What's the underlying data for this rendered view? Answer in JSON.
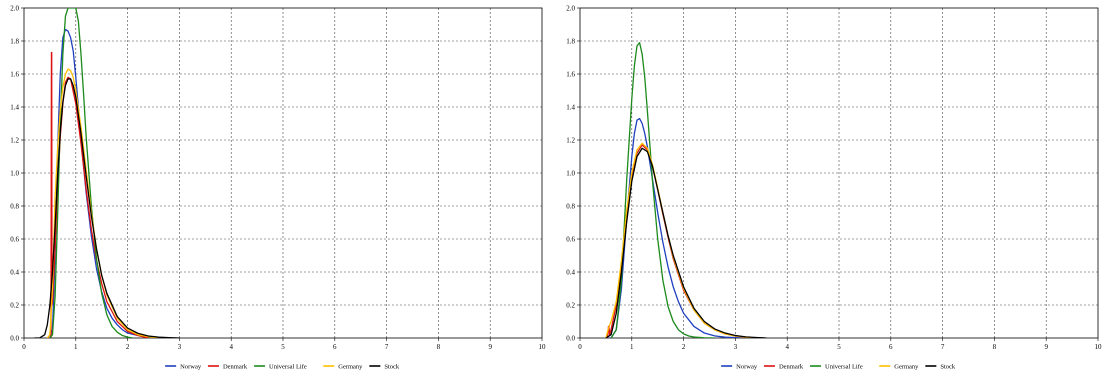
{
  "chart_data": [
    {
      "type": "line",
      "title": "",
      "xlabel": "",
      "ylabel": "",
      "xlim": [
        0,
        10
      ],
      "ylim": [
        0,
        2.0
      ],
      "x_ticks": [
        "0",
        "1",
        "2",
        "3",
        "4",
        "5",
        "6",
        "7",
        "8",
        "9",
        "10"
      ],
      "y_ticks": [
        "0.0",
        "0.2",
        "0.4",
        "0.6",
        "0.8",
        "1.0",
        "1.2",
        "1.4",
        "1.6",
        "1.8",
        "2.0"
      ],
      "grid": true,
      "legend_position": "bottom",
      "series": [
        {
          "name": "Norway",
          "color": "#1f3fbf",
          "x": [
            0.45,
            0.5,
            0.55,
            0.6,
            0.65,
            0.7,
            0.75,
            0.8,
            0.85,
            0.9,
            0.95,
            1.0,
            1.05,
            1.1,
            1.2,
            1.3,
            1.4,
            1.5,
            1.6,
            1.7,
            1.8,
            1.9,
            2.0,
            2.2,
            2.4,
            2.6,
            2.8
          ],
          "y": [
            0.0,
            0.0,
            0.05,
            0.5,
            1.15,
            1.6,
            1.82,
            1.87,
            1.86,
            1.82,
            1.74,
            1.58,
            1.4,
            1.2,
            0.88,
            0.62,
            0.42,
            0.28,
            0.18,
            0.12,
            0.08,
            0.05,
            0.03,
            0.015,
            0.007,
            0.003,
            0.0
          ]
        },
        {
          "name": "Denmark",
          "color": "#dd1111",
          "x": [
            0.45,
            0.5,
            0.52,
            0.53,
            0.535,
            0.54,
            0.55,
            0.6,
            0.65,
            0.7,
            0.75,
            0.8,
            0.85,
            0.9,
            1.0,
            1.1,
            1.2,
            1.3,
            1.4,
            1.5,
            1.6,
            1.8,
            2.0,
            2.2,
            2.4
          ],
          "y": [
            0.0,
            0.0,
            0.0,
            1.73,
            1.73,
            0.2,
            0.22,
            0.55,
            0.92,
            1.22,
            1.42,
            1.55,
            1.58,
            1.57,
            1.42,
            1.18,
            0.9,
            0.66,
            0.47,
            0.33,
            0.22,
            0.1,
            0.04,
            0.015,
            0.0
          ]
        },
        {
          "name": "Universal Life",
          "color": "#1c8a1c",
          "x": [
            0.5,
            0.55,
            0.6,
            0.65,
            0.7,
            0.75,
            0.8,
            0.85,
            0.9,
            0.95,
            1.0,
            1.05,
            1.1,
            1.15,
            1.2,
            1.3,
            1.4,
            1.5,
            1.6,
            1.7,
            1.8,
            1.9,
            2.0,
            2.1
          ],
          "y": [
            0.0,
            0.02,
            0.25,
            0.75,
            1.3,
            1.72,
            1.95,
            2.0,
            2.0,
            2.0,
            2.0,
            1.92,
            1.72,
            1.48,
            1.22,
            0.8,
            0.48,
            0.27,
            0.14,
            0.07,
            0.035,
            0.015,
            0.005,
            0.0
          ]
        },
        {
          "name": "Germany",
          "color": "#ffc000",
          "x": [
            0.45,
            0.5,
            0.55,
            0.6,
            0.65,
            0.7,
            0.75,
            0.8,
            0.85,
            0.9,
            0.95,
            1.0,
            1.1,
            1.2,
            1.3,
            1.4,
            1.5,
            1.6,
            1.8,
            2.0,
            2.2,
            2.4,
            2.6
          ],
          "y": [
            0.0,
            0.02,
            0.3,
            0.85,
            1.15,
            1.38,
            1.52,
            1.6,
            1.63,
            1.62,
            1.58,
            1.5,
            1.28,
            1.02,
            0.76,
            0.54,
            0.38,
            0.26,
            0.12,
            0.05,
            0.02,
            0.008,
            0.0
          ]
        },
        {
          "name": "Stock",
          "color": "#000000",
          "x": [
            0.2,
            0.3,
            0.4,
            0.45,
            0.5,
            0.55,
            0.6,
            0.65,
            0.7,
            0.75,
            0.8,
            0.85,
            0.9,
            0.95,
            1.0,
            1.1,
            1.2,
            1.3,
            1.4,
            1.5,
            1.6,
            1.8,
            2.0,
            2.2,
            2.4,
            2.6,
            2.8,
            3.0
          ],
          "y": [
            0.0,
            0.0,
            0.02,
            0.08,
            0.2,
            0.4,
            0.68,
            0.98,
            1.25,
            1.43,
            1.53,
            1.57,
            1.57,
            1.53,
            1.46,
            1.24,
            0.98,
            0.74,
            0.54,
            0.38,
            0.27,
            0.13,
            0.06,
            0.028,
            0.012,
            0.005,
            0.002,
            0.0
          ]
        }
      ]
    },
    {
      "type": "line",
      "title": "",
      "xlabel": "",
      "ylabel": "",
      "xlim": [
        0,
        10
      ],
      "ylim": [
        0,
        2.0
      ],
      "x_ticks": [
        "0",
        "1",
        "2",
        "3",
        "4",
        "5",
        "6",
        "7",
        "8",
        "9",
        "10"
      ],
      "y_ticks": [
        "0.0",
        "0.2",
        "0.4",
        "0.6",
        "0.8",
        "1.0",
        "1.2",
        "1.4",
        "1.6",
        "1.8",
        "2.0"
      ],
      "grid": true,
      "legend_position": "bottom",
      "series": [
        {
          "name": "Norway",
          "color": "#1f3fbf",
          "x": [
            0.5,
            0.6,
            0.7,
            0.8,
            0.9,
            1.0,
            1.05,
            1.1,
            1.15,
            1.2,
            1.25,
            1.3,
            1.4,
            1.5,
            1.6,
            1.7,
            1.8,
            1.9,
            2.0,
            2.2,
            2.4,
            2.6,
            2.8,
            3.0,
            3.2
          ],
          "y": [
            0.0,
            0.0,
            0.05,
            0.3,
            0.72,
            1.1,
            1.24,
            1.32,
            1.33,
            1.3,
            1.24,
            1.16,
            0.96,
            0.76,
            0.58,
            0.43,
            0.31,
            0.22,
            0.15,
            0.07,
            0.03,
            0.013,
            0.005,
            0.002,
            0.0
          ]
        },
        {
          "name": "Denmark",
          "color": "#dd1111",
          "x": [
            0.5,
            0.53,
            0.55,
            0.56,
            0.57,
            0.6,
            0.7,
            0.8,
            0.9,
            1.0,
            1.1,
            1.2,
            1.3,
            1.4,
            1.5,
            1.6,
            1.7,
            1.8,
            2.0,
            2.2,
            2.4,
            2.6,
            2.8,
            3.0,
            3.2,
            3.4
          ],
          "y": [
            0.0,
            0.0,
            0.07,
            0.07,
            0.02,
            0.05,
            0.2,
            0.45,
            0.75,
            0.98,
            1.12,
            1.17,
            1.14,
            1.04,
            0.9,
            0.75,
            0.61,
            0.48,
            0.29,
            0.17,
            0.09,
            0.05,
            0.025,
            0.012,
            0.005,
            0.0
          ]
        },
        {
          "name": "Universal Life",
          "color": "#1c8a1c",
          "x": [
            0.6,
            0.7,
            0.8,
            0.9,
            1.0,
            1.05,
            1.1,
            1.15,
            1.2,
            1.25,
            1.3,
            1.4,
            1.5,
            1.6,
            1.7,
            1.8,
            1.9,
            2.0,
            2.1,
            2.2,
            2.4,
            2.6
          ],
          "y": [
            0.0,
            0.05,
            0.35,
            0.95,
            1.45,
            1.65,
            1.77,
            1.79,
            1.72,
            1.58,
            1.38,
            0.95,
            0.6,
            0.35,
            0.19,
            0.1,
            0.05,
            0.025,
            0.012,
            0.006,
            0.001,
            0.0
          ]
        },
        {
          "name": "Germany",
          "color": "#ffc000",
          "x": [
            0.5,
            0.55,
            0.6,
            0.7,
            0.8,
            0.9,
            1.0,
            1.1,
            1.2,
            1.3,
            1.4,
            1.5,
            1.6,
            1.7,
            1.8,
            2.0,
            2.2,
            2.4,
            2.6,
            2.8,
            3.0,
            3.2,
            3.4
          ],
          "y": [
            0.0,
            0.06,
            0.1,
            0.22,
            0.47,
            0.77,
            1.0,
            1.14,
            1.18,
            1.15,
            1.05,
            0.91,
            0.76,
            0.62,
            0.49,
            0.3,
            0.17,
            0.09,
            0.05,
            0.025,
            0.012,
            0.005,
            0.0
          ]
        },
        {
          "name": "Stock",
          "color": "#000000",
          "x": [
            0.5,
            0.6,
            0.7,
            0.8,
            0.9,
            1.0,
            1.1,
            1.2,
            1.3,
            1.4,
            1.5,
            1.6,
            1.7,
            1.8,
            2.0,
            2.2,
            2.4,
            2.6,
            2.8,
            3.0,
            3.2,
            3.4,
            3.6
          ],
          "y": [
            0.0,
            0.02,
            0.15,
            0.4,
            0.7,
            0.95,
            1.1,
            1.15,
            1.13,
            1.04,
            0.9,
            0.76,
            0.62,
            0.5,
            0.31,
            0.18,
            0.1,
            0.055,
            0.03,
            0.015,
            0.007,
            0.003,
            0.0
          ]
        }
      ]
    }
  ]
}
